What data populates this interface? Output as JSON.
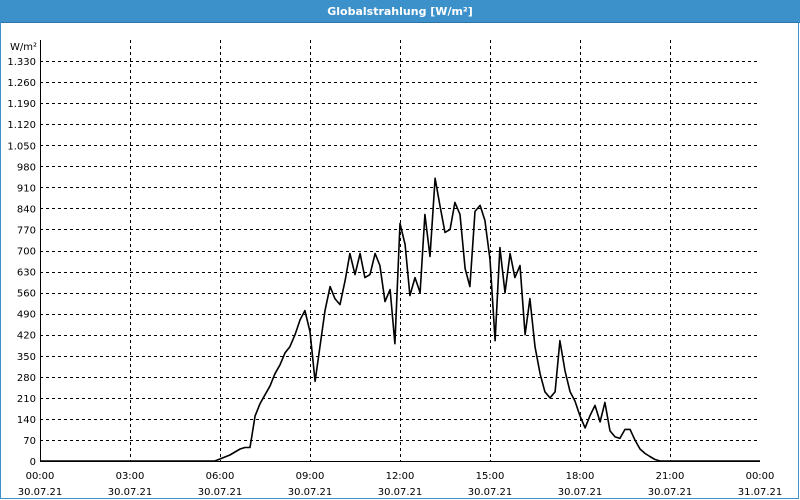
{
  "window": {
    "title": "Globalstrahlung [W/m²]"
  },
  "chart_data": {
    "type": "line",
    "title": "Globalstrahlung [W/m²]",
    "ylabel": "W/m²",
    "xlabel": "",
    "ylim": [
      0,
      1400
    ],
    "xlim_hours": [
      0,
      24
    ],
    "grid": true,
    "line_color": "#000000",
    "y_ticks": [
      0,
      70,
      140,
      210,
      280,
      350,
      420,
      490,
      560,
      630,
      700,
      770,
      840,
      910,
      980,
      1050,
      1120,
      1190,
      1260,
      1330
    ],
    "y_tick_labels": [
      "0",
      "70",
      "140",
      "210",
      "280",
      "350",
      "420",
      "490",
      "560",
      "630",
      "700",
      "770",
      "840",
      "910",
      "980",
      "1.050",
      "1.120",
      "1.190",
      "1.260",
      "1.330"
    ],
    "x_ticks": [
      {
        "h": 0,
        "time": "00:00",
        "date": "30.07.21"
      },
      {
        "h": 3,
        "time": "03:00",
        "date": "30.07.21"
      },
      {
        "h": 6,
        "time": "06:00",
        "date": "30.07.21"
      },
      {
        "h": 9,
        "time": "09:00",
        "date": "30.07.21"
      },
      {
        "h": 12,
        "time": "12:00",
        "date": "30.07.21"
      },
      {
        "h": 15,
        "time": "15:00",
        "date": "30.07.21"
      },
      {
        "h": 18,
        "time": "18:00",
        "date": "30.07.21"
      },
      {
        "h": 21,
        "time": "21:00",
        "date": "30.07.21"
      },
      {
        "h": 24,
        "time": "00:00",
        "date": "31.07.21"
      }
    ],
    "series": [
      {
        "x": [
          0,
          5.83,
          6.33,
          6.67,
          6.83,
          7.0,
          7.17,
          7.33,
          7.5,
          7.67,
          7.83,
          8.0,
          8.17,
          8.33,
          8.5,
          8.67,
          8.83,
          9.0,
          9.17,
          9.5,
          9.67,
          9.83,
          10.0,
          10.17,
          10.33,
          10.5,
          10.67,
          10.83,
          11.0,
          11.17,
          11.33,
          11.5,
          11.67,
          11.83,
          12.0,
          12.17,
          12.33,
          12.5,
          12.67,
          12.83,
          13.0,
          13.17,
          13.33,
          13.5,
          13.67,
          13.83,
          14.0,
          14.17,
          14.33,
          14.5,
          14.67,
          14.83,
          15.0,
          15.17,
          15.33,
          15.5,
          15.67,
          15.83,
          16.0,
          16.17,
          16.33,
          16.5,
          16.67,
          16.83,
          17.0,
          17.17,
          17.33,
          17.5,
          17.67,
          17.83,
          18.0,
          18.17,
          18.33,
          18.5,
          18.67,
          18.83,
          19.0,
          19.17,
          19.33,
          19.5,
          19.67,
          19.83,
          20.0,
          20.17,
          20.33,
          20.5,
          20.67,
          20.83,
          21.0,
          24.0
        ],
        "values": [
          0,
          0,
          20,
          40,
          45,
          45,
          150,
          190,
          220,
          250,
          290,
          320,
          360,
          380,
          420,
          470,
          500,
          430,
          265,
          500,
          580,
          540,
          520,
          600,
          690,
          620,
          690,
          610,
          620,
          690,
          650,
          530,
          570,
          390,
          790,
          720,
          550,
          610,
          560,
          820,
          680,
          940,
          850,
          760,
          770,
          860,
          820,
          640,
          580,
          830,
          850,
          800,
          670,
          400,
          710,
          560,
          690,
          610,
          650,
          420,
          540,
          380,
          290,
          230,
          210,
          230,
          400,
          300,
          230,
          200,
          150,
          110,
          150,
          185,
          130,
          195,
          100,
          80,
          75,
          105,
          105,
          70,
          40,
          25,
          15,
          5,
          0,
          0,
          0,
          0
        ]
      }
    ]
  }
}
